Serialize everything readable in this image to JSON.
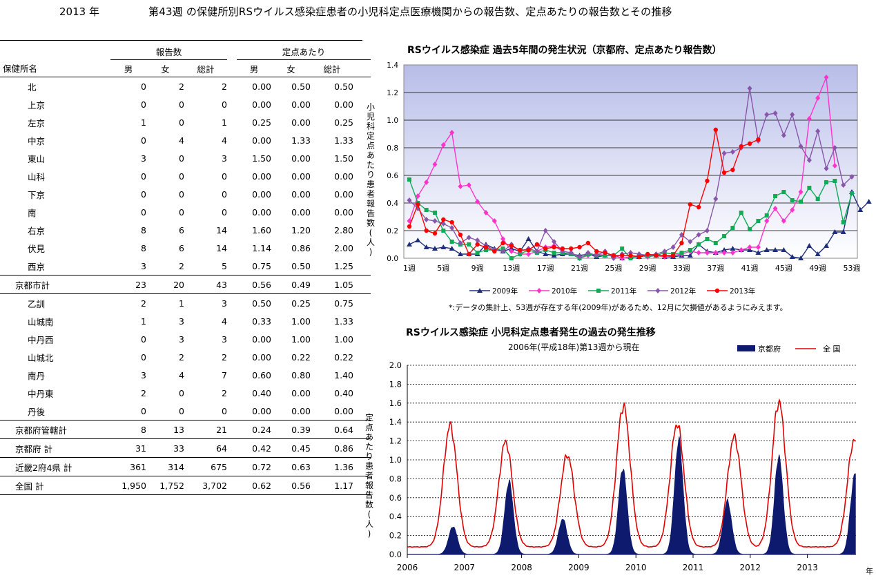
{
  "header": {
    "year": "2013 年",
    "title": "第43週 の保健所別RSウイルス感染症患者の小児科定点医療機関からの報告数、定点あたりの報告数とその推移"
  },
  "table": {
    "group_reports": "報告数",
    "group_rate": "定点あたり",
    "col_name": "保健所名",
    "col_male": "男",
    "col_female": "女",
    "col_total": "総計",
    "rows": [
      {
        "name": "北",
        "m": "0",
        "f": "2",
        "t": "2",
        "rm": "0.00",
        "rf": "0.50",
        "rt": "0.50"
      },
      {
        "name": "上京",
        "m": "0",
        "f": "0",
        "t": "0",
        "rm": "0.00",
        "rf": "0.00",
        "rt": "0.00"
      },
      {
        "name": "左京",
        "m": "1",
        "f": "0",
        "t": "1",
        "rm": "0.25",
        "rf": "0.00",
        "rt": "0.25"
      },
      {
        "name": "中京",
        "m": "0",
        "f": "4",
        "t": "4",
        "rm": "0.00",
        "rf": "1.33",
        "rt": "1.33"
      },
      {
        "name": "東山",
        "m": "3",
        "f": "0",
        "t": "3",
        "rm": "1.50",
        "rf": "0.00",
        "rt": "1.50"
      },
      {
        "name": "山科",
        "m": "0",
        "f": "0",
        "t": "0",
        "rm": "0.00",
        "rf": "0.00",
        "rt": "0.00"
      },
      {
        "name": "下京",
        "m": "0",
        "f": "0",
        "t": "0",
        "rm": "0.00",
        "rf": "0.00",
        "rt": "0.00"
      },
      {
        "name": "南",
        "m": "0",
        "f": "0",
        "t": "0",
        "rm": "0.00",
        "rf": "0.00",
        "rt": "0.00"
      },
      {
        "name": "右京",
        "m": "8",
        "f": "6",
        "t": "14",
        "rm": "1.60",
        "rf": "1.20",
        "rt": "2.80"
      },
      {
        "name": "伏見",
        "m": "8",
        "f": "6",
        "t": "14",
        "rm": "1.14",
        "rf": "0.86",
        "rt": "2.00"
      },
      {
        "name": "西京",
        "m": "3",
        "f": "2",
        "t": "5",
        "rm": "0.75",
        "rf": "0.50",
        "rt": "1.25"
      },
      {
        "name": "京都市計",
        "m": "23",
        "f": "20",
        "t": "43",
        "rm": "0.56",
        "rf": "0.49",
        "rt": "1.05",
        "sum": true
      },
      {
        "name": "乙訓",
        "m": "2",
        "f": "1",
        "t": "3",
        "rm": "0.50",
        "rf": "0.25",
        "rt": "0.75"
      },
      {
        "name": "山城南",
        "m": "1",
        "f": "3",
        "t": "4",
        "rm": "0.33",
        "rf": "1.00",
        "rt": "1.33"
      },
      {
        "name": "中丹西",
        "m": "0",
        "f": "3",
        "t": "3",
        "rm": "0.00",
        "rf": "1.00",
        "rt": "1.00"
      },
      {
        "name": "山城北",
        "m": "0",
        "f": "2",
        "t": "2",
        "rm": "0.00",
        "rf": "0.22",
        "rt": "0.22"
      },
      {
        "name": "南丹",
        "m": "3",
        "f": "4",
        "t": "7",
        "rm": "0.60",
        "rf": "0.80",
        "rt": "1.40"
      },
      {
        "name": "中丹東",
        "m": "2",
        "f": "0",
        "t": "2",
        "rm": "0.40",
        "rf": "0.00",
        "rt": "0.40"
      },
      {
        "name": "丹後",
        "m": "0",
        "f": "0",
        "t": "0",
        "rm": "0.00",
        "rf": "0.00",
        "rt": "0.00"
      },
      {
        "name": "京都府管轄計",
        "m": "8",
        "f": "13",
        "t": "21",
        "rm": "0.24",
        "rf": "0.39",
        "rt": "0.64",
        "sum": true
      },
      {
        "name": "京都府  計",
        "m": "31",
        "f": "33",
        "t": "64",
        "rm": "0.42",
        "rf": "0.45",
        "rt": "0.86",
        "sum": true
      },
      {
        "name": "近畿2府4県  計",
        "m": "361",
        "f": "314",
        "t": "675",
        "rm": "0.72",
        "rf": "0.63",
        "rt": "1.36",
        "sum": true
      },
      {
        "name": "全国  計",
        "m": "1,950",
        "f": "1,752",
        "t": "3,702",
        "rm": "0.62",
        "rf": "0.56",
        "rt": "1.17",
        "sum": true
      }
    ]
  },
  "chart_data": [
    {
      "type": "line",
      "title": "RSウイルス感染症  過去5年間の発生状況（京都府、定点あたり報告数）",
      "ylabel": "小児科定点あたり患者報告数(人)",
      "ylim": [
        0,
        1.4
      ],
      "yticks": [
        "0.0",
        "0.2",
        "0.4",
        "0.6",
        "0.8",
        "1.0",
        "1.2",
        "1.4"
      ],
      "xticks": [
        "1週",
        "5週",
        "9週",
        "13週",
        "17週",
        "21週",
        "25週",
        "29週",
        "33週",
        "37週",
        "41週",
        "45週",
        "49週",
        "53週"
      ],
      "legend_placement": "bottom",
      "note": "*:データの集計上、53週が存在する年(2009年)があるため、12月に欠損値があるようにみえます。",
      "series": [
        {
          "name": "2009年",
          "color": "#1f2f7a",
          "marker": "triangle",
          "values": [
            0.1,
            0.13,
            0.08,
            0.07,
            0.08,
            0.07,
            0.03,
            0.03,
            0.03,
            0.1,
            0.07,
            0.05,
            0.07,
            0.05,
            0.14,
            0.05,
            0.03,
            0.02,
            0.03,
            0.03,
            0.02,
            0.03,
            0.01,
            0.02,
            0.02,
            0.0,
            0.01,
            0.01,
            0.02,
            0.02,
            0.01,
            0.01,
            0.02,
            0.02,
            0.1,
            0.05,
            0.04,
            0.06,
            0.07,
            0.06,
            0.06,
            0.04,
            0.06,
            0.06,
            0.06,
            0.01,
            0.0,
            0.09,
            0.03,
            0.09,
            0.19,
            0.19,
            0.48,
            0.35,
            0.41
          ]
        },
        {
          "name": "2010年",
          "color": "#ff33cc",
          "marker": "diamond",
          "values": [
            0.27,
            0.45,
            0.55,
            0.68,
            0.82,
            0.91,
            0.52,
            0.53,
            0.41,
            0.33,
            0.27,
            0.14,
            0.05,
            0.03,
            0.03,
            0.05,
            0.08,
            0.09,
            0.05,
            0.04,
            0.0,
            0.02,
            0.03,
            0.02,
            0.02,
            0.0,
            0.01,
            0.02,
            0.01,
            0.02,
            0.01,
            0.02,
            0.03,
            0.05,
            0.04,
            0.04,
            0.04,
            0.04,
            0.04,
            0.06,
            0.08,
            0.08,
            0.27,
            0.36,
            0.27,
            0.35,
            0.48,
            1.01,
            1.16,
            1.31,
            0.67
          ]
        },
        {
          "name": "2011年",
          "color": "#11aa55",
          "marker": "square",
          "values": [
            0.57,
            0.4,
            0.35,
            0.33,
            0.2,
            0.12,
            0.1,
            0.1,
            0.04,
            0.06,
            0.06,
            0.07,
            0.0,
            0.03,
            0.06,
            0.04,
            0.06,
            0.04,
            0.04,
            0.03,
            0.0,
            0.03,
            0.02,
            0.02,
            0.02,
            0.07,
            0.0,
            0.02,
            0.02,
            0.02,
            0.04,
            0.03,
            0.04,
            0.06,
            0.1,
            0.14,
            0.11,
            0.16,
            0.22,
            0.33,
            0.21,
            0.27,
            0.31,
            0.45,
            0.48,
            0.42,
            0.41,
            0.51,
            0.43,
            0.55,
            0.56,
            0.26,
            0.47
          ]
        },
        {
          "name": "2012年",
          "color": "#8855aa",
          "marker": "diamond",
          "values": [
            0.42,
            0.36,
            0.28,
            0.27,
            0.25,
            0.22,
            0.11,
            0.15,
            0.13,
            0.09,
            0.06,
            0.05,
            0.1,
            0.05,
            0.07,
            0.05,
            0.2,
            0.12,
            0.05,
            0.04,
            0.01,
            0.04,
            0.02,
            0.05,
            0.0,
            0.03,
            0.04,
            0.03,
            0.02,
            0.03,
            0.05,
            0.08,
            0.17,
            0.12,
            0.17,
            0.2,
            0.43,
            0.76,
            0.77,
            0.8,
            1.23,
            0.85,
            1.04,
            1.05,
            0.89,
            1.04,
            0.81,
            0.71,
            0.92,
            0.65,
            0.8,
            0.53,
            0.59
          ]
        },
        {
          "name": "2013年",
          "color": "#ff0000",
          "marker": "circle",
          "values": [
            0.23,
            0.39,
            0.2,
            0.18,
            0.28,
            0.26,
            0.17,
            0.03,
            0.1,
            0.08,
            0.05,
            0.11,
            0.09,
            0.06,
            0.06,
            0.1,
            0.07,
            0.08,
            0.07,
            0.07,
            0.08,
            0.11,
            0.05,
            0.04,
            0.02,
            0.02,
            0.02,
            0.01,
            0.03,
            0.02,
            0.02,
            0.02,
            0.11,
            0.39,
            0.37,
            0.56,
            0.93,
            0.62,
            0.64,
            0.81,
            0.83,
            0.86
          ]
        }
      ]
    },
    {
      "type": "area",
      "title": "RSウイルス感染症  小児科定点患者発生の過去の発生推移",
      "subtitle": "2006年(平成18年)第13週から現在",
      "ylabel": "定点あたり患者報告数(人)",
      "xunit": "年",
      "ylim": [
        0,
        2.0
      ],
      "yticks": [
        "0.0",
        "0.2",
        "0.4",
        "0.6",
        "0.8",
        "1.0",
        "1.2",
        "1.4",
        "1.6",
        "1.8",
        "2.0"
      ],
      "xticks": [
        "2006",
        "2007",
        "2008",
        "2009",
        "2010",
        "2011",
        "2012",
        "2013"
      ],
      "legend_placement": "top-right",
      "series": [
        {
          "name": "京都府",
          "color": "#0d1a6e",
          "kind": "area",
          "peaks": [
            [
              2006.8,
              0.3
            ],
            [
              2007.78,
              0.78
            ],
            [
              2008.72,
              0.38
            ],
            [
              2009.77,
              0.92
            ],
            [
              2010.75,
              1.22
            ],
            [
              2011.6,
              0.57
            ],
            [
              2012.5,
              1.05
            ],
            [
              2013.83,
              0.86
            ]
          ]
        },
        {
          "name": "全  国",
          "color": "#e00000",
          "kind": "line",
          "peaks": [
            [
              2006.75,
              1.36
            ],
            [
              2007.72,
              1.19
            ],
            [
              2008.8,
              1.05
            ],
            [
              2009.78,
              1.57
            ],
            [
              2010.72,
              1.38
            ],
            [
              2011.72,
              1.24
            ],
            [
              2012.5,
              1.61
            ],
            [
              2013.82,
              1.21
            ]
          ]
        }
      ]
    }
  ]
}
